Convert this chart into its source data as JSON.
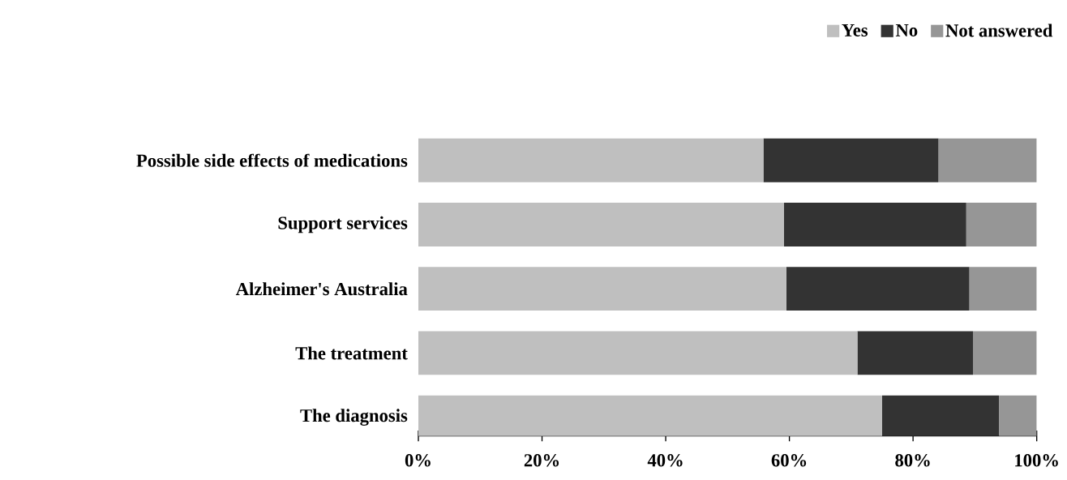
{
  "chart_data": {
    "type": "bar",
    "orientation": "horizontal",
    "stacked": true,
    "categories": [
      "Possible side effects of medications",
      "Support services",
      "Alzheimer's Australia",
      "The treatment",
      "The diagnosis"
    ],
    "series": [
      {
        "name": "Yes",
        "color": "#bfbfbf",
        "values": [
          55.8,
          59.1,
          59.5,
          71.0,
          75.0
        ]
      },
      {
        "name": "No",
        "color": "#333333",
        "values": [
          28.3,
          29.5,
          29.6,
          18.7,
          18.9
        ]
      },
      {
        "name": "Not answered",
        "color": "#969696",
        "values": [
          15.9,
          11.4,
          10.9,
          10.3,
          6.1
        ]
      }
    ],
    "xlim": [
      0,
      100
    ],
    "xticks": [
      {
        "value": 0,
        "label": "0%"
      },
      {
        "value": 20,
        "label": "20%"
      },
      {
        "value": 40,
        "label": "40%"
      },
      {
        "value": 60,
        "label": "60%"
      },
      {
        "value": 80,
        "label": "80%"
      },
      {
        "value": 100,
        "label": "100%"
      }
    ],
    "legend": "top right",
    "grid": false
  }
}
